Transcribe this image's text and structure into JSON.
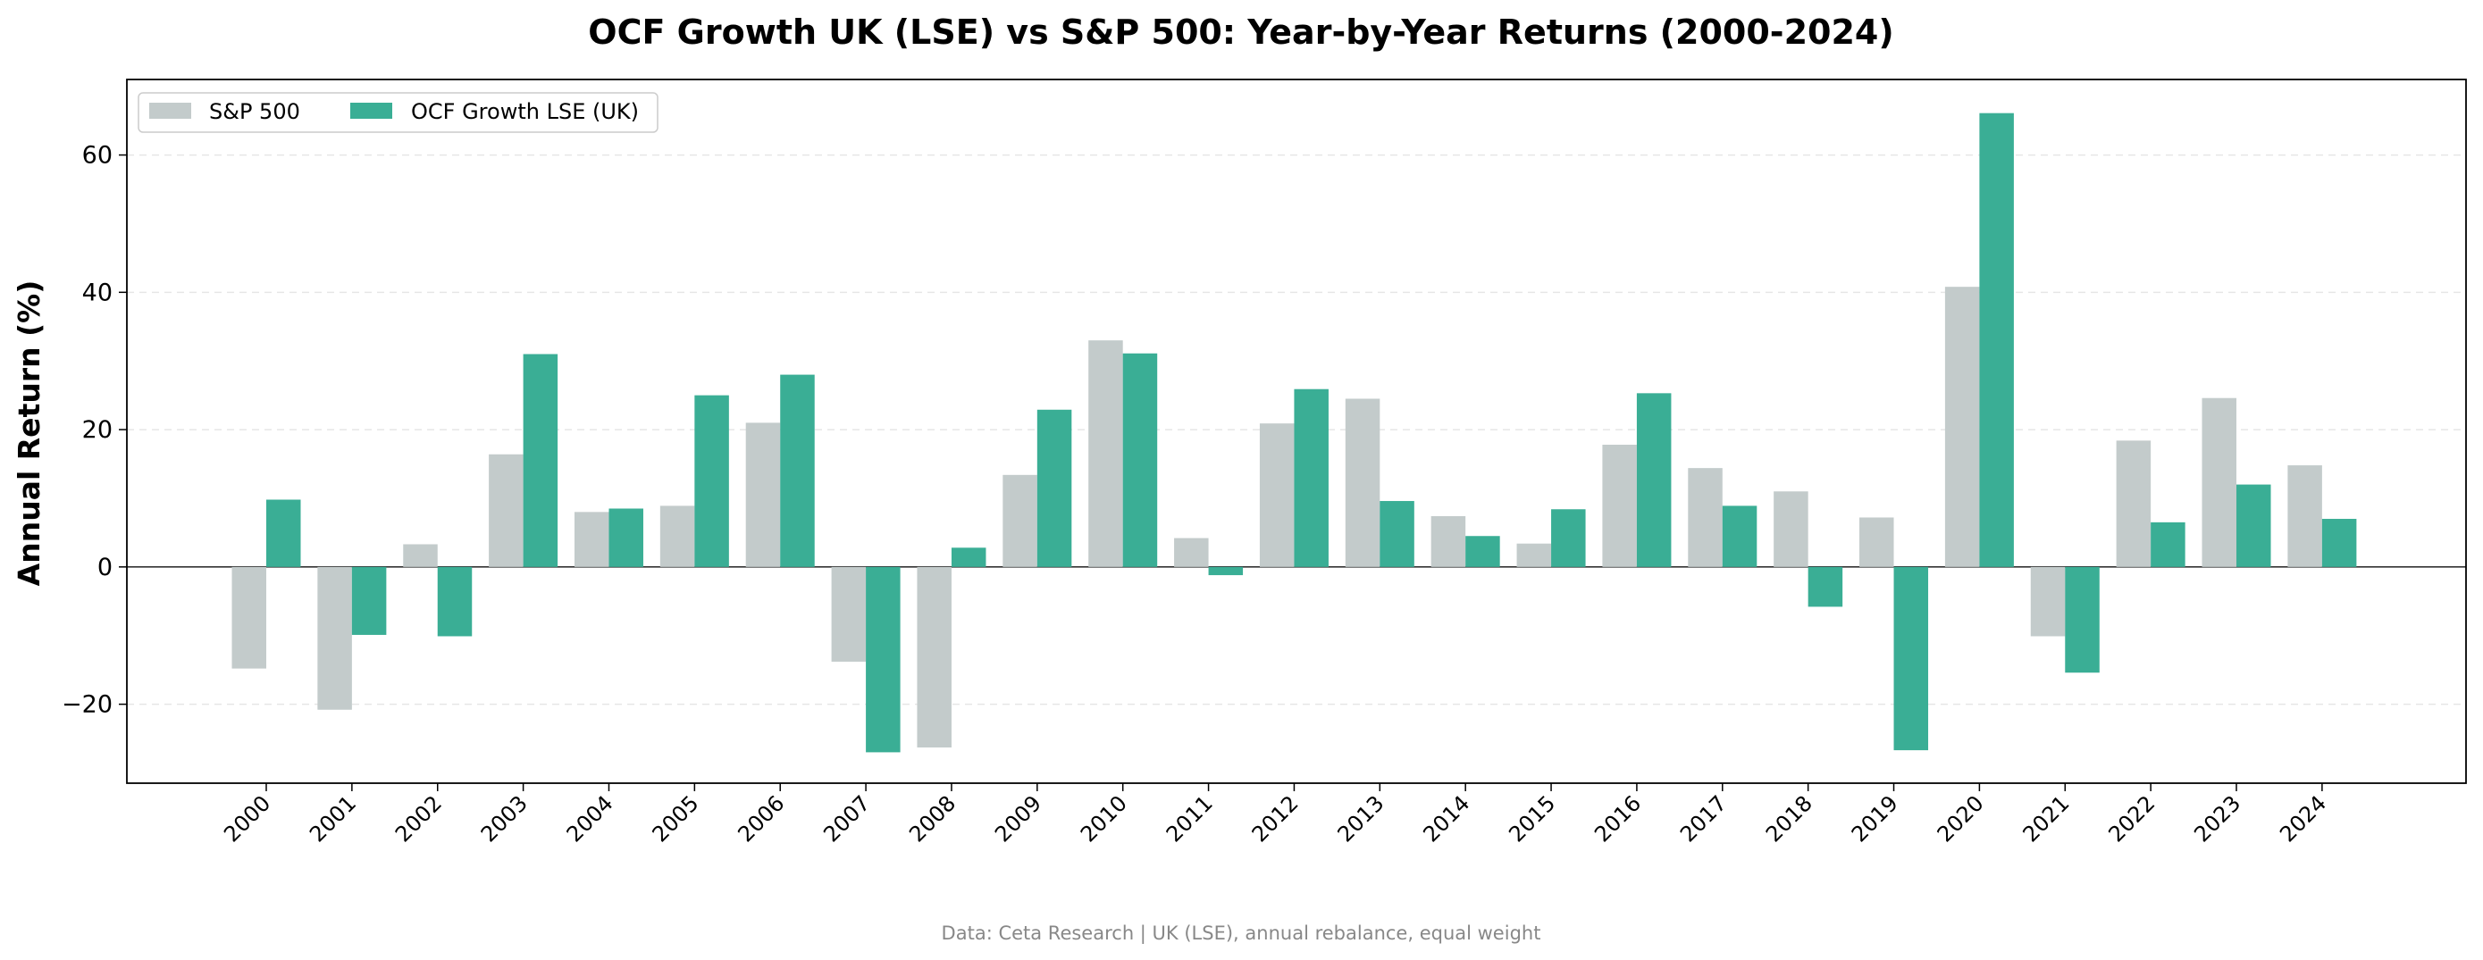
{
  "chart_data": {
    "type": "bar",
    "title": "OCF Growth UK (LSE) vs S&P 500: Year-by-Year Returns (2000-2024)",
    "xlabel": "",
    "ylabel": "Annual Return (%)",
    "categories": [
      "2000",
      "2001",
      "2002",
      "2003",
      "2004",
      "2005",
      "2006",
      "2007",
      "2008",
      "2009",
      "2010",
      "2011",
      "2012",
      "2013",
      "2014",
      "2015",
      "2016",
      "2017",
      "2018",
      "2019",
      "2020",
      "2021",
      "2022",
      "2023",
      "2024"
    ],
    "series": [
      {
        "name": "S&P 500",
        "color": "#c3cbcb",
        "values": [
          -14.8,
          -20.8,
          3.3,
          16.4,
          8.0,
          8.9,
          21.0,
          -13.8,
          -26.3,
          13.4,
          33.0,
          4.2,
          20.9,
          24.5,
          7.4,
          3.4,
          17.8,
          14.4,
          11.0,
          7.2,
          40.8,
          -10.1,
          18.4,
          24.6,
          14.8
        ]
      },
      {
        "name": "OCF Growth LSE (UK)",
        "color": "#3aae95",
        "values": [
          9.8,
          -9.9,
          -10.1,
          31.0,
          8.5,
          25.0,
          28.0,
          -27.0,
          2.8,
          22.9,
          31.1,
          -1.2,
          25.9,
          9.6,
          4.5,
          8.4,
          25.3,
          8.9,
          -5.8,
          -26.7,
          66.1,
          -15.4,
          6.5,
          12.0,
          7.0
        ]
      }
    ],
    "ylim": [
      -31.5,
      71.0
    ],
    "yticks": [
      -20,
      0,
      20,
      40,
      60
    ],
    "ytick_labels": [
      "−20",
      "0",
      "20",
      "40",
      "60"
    ],
    "grid": "y-dashed",
    "legend_position": "top-left",
    "footnote": "Data: Ceta Research | UK (LSE), annual rebalance, equal weight"
  }
}
